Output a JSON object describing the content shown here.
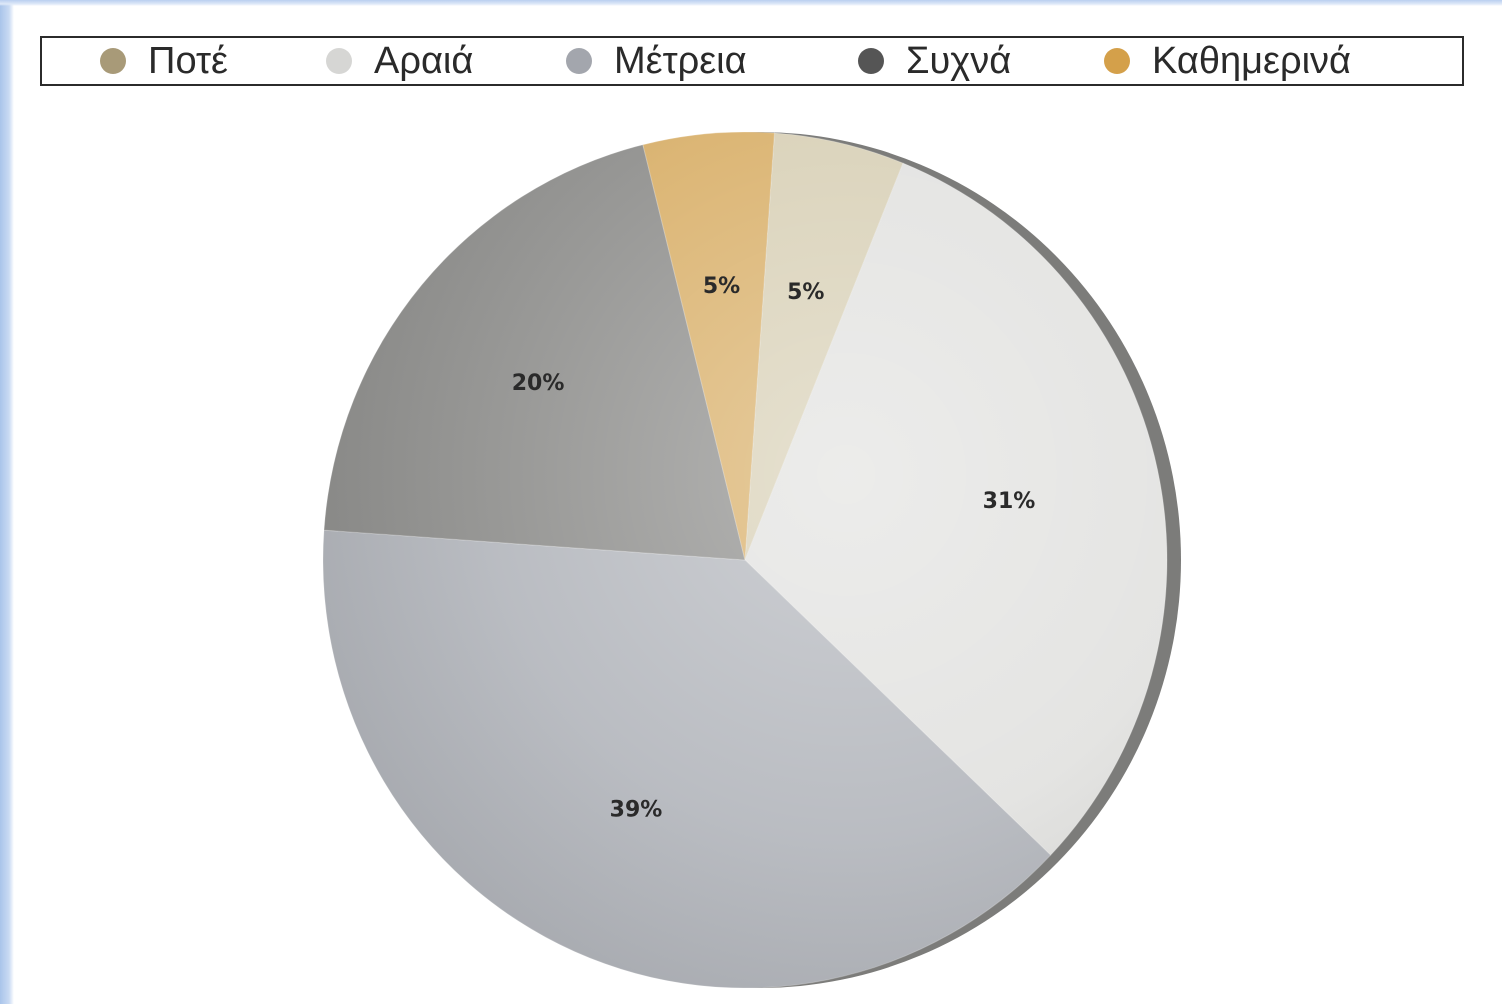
{
  "chart_data": {
    "type": "pie",
    "legend": {
      "placement": "top",
      "entries": [
        "Ποτέ",
        "Αραιά",
        "Μέτρεια",
        "Συχνά",
        "Καθημερινά"
      ]
    },
    "slices": [
      {
        "label": "Ποτέ",
        "value": 5,
        "display": "5%",
        "color": "#d8d0b6",
        "legend_color": "#a89a78"
      },
      {
        "label": "Αραιά",
        "value": 31,
        "display": "31%",
        "color": "#e2e2e0",
        "legend_color": "#d6d6d4"
      },
      {
        "label": "Μέτρεια",
        "value": 39,
        "display": "39%",
        "color": "#b4b7bd",
        "legend_color": "#a3a6ad"
      },
      {
        "label": "Συχνά",
        "value": 20,
        "display": "20%",
        "color": "#8f8f8d",
        "legend_color": "#555555"
      },
      {
        "label": "Καθημερινά",
        "value": 5,
        "display": "5%",
        "color": "#d9b06a",
        "legend_color": "#d4a04a"
      }
    ]
  }
}
